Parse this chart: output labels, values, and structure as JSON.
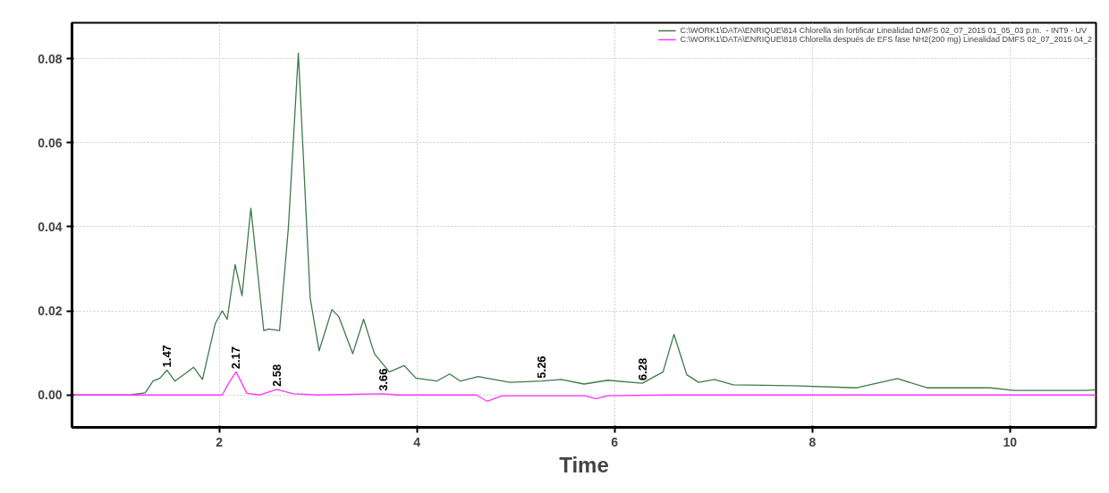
{
  "chart_data": {
    "type": "line",
    "xlabel": "Time",
    "xlim": [
      0.51,
      10.87
    ],
    "ylim": [
      -0.0077,
      0.0885
    ],
    "xticks": [
      2,
      4,
      6,
      8,
      10
    ],
    "yticks": [
      {
        "value": 0,
        "label": "0.00"
      },
      {
        "value": 0.02,
        "label": "0.02"
      },
      {
        "value": 0.04,
        "label": "0.04"
      },
      {
        "value": 0.06,
        "label": "0.06"
      },
      {
        "value": 0.08,
        "label": "0.08"
      }
    ],
    "grid": true,
    "legend": "top right",
    "marker": "none",
    "line_style": "solid",
    "series": [
      {
        "name": "C:\\WORK1\\DATA\\ENRIQUE\\814 Chlorella sin fortificar Linealidad DMFS 02_07_2015 01_05_03 p.m.  - INT9 - UV",
        "color": "#3d7a4a",
        "x": [
          0.51,
          1.1,
          1.25,
          1.33,
          1.4,
          1.47,
          1.55,
          1.65,
          1.74,
          1.83,
          1.96,
          2.03,
          2.08,
          2.16,
          2.23,
          2.32,
          2.45,
          2.5,
          2.61,
          2.7,
          2.8,
          2.92,
          3.01,
          3.14,
          3.21,
          3.35,
          3.46,
          3.57,
          3.72,
          3.87,
          3.99,
          4.2,
          4.33,
          4.44,
          4.62,
          4.94,
          5.26,
          5.46,
          5.69,
          5.93,
          6.28,
          6.49,
          6.6,
          6.73,
          6.85,
          7.01,
          7.2,
          7.8,
          8.45,
          8.86,
          9.16,
          9.8,
          10.04,
          10.75,
          10.87
        ],
        "values": [
          0,
          0,
          0.0005,
          0.0033,
          0.004,
          0.0059,
          0.0033,
          0.005,
          0.0066,
          0.0037,
          0.017,
          0.02,
          0.018,
          0.031,
          0.0236,
          0.0444,
          0.0153,
          0.0157,
          0.0153,
          0.04,
          0.0813,
          0.023,
          0.0105,
          0.0203,
          0.0186,
          0.0098,
          0.018,
          0.0098,
          0.0055,
          0.007,
          0.004,
          0.0033,
          0.005,
          0.0033,
          0.0044,
          0.003,
          0.0033,
          0.0037,
          0.0026,
          0.0035,
          0.0028,
          0.0055,
          0.0144,
          0.0048,
          0.003,
          0.0037,
          0.0024,
          0.0022,
          0.0017,
          0.0039,
          0.0017,
          0.0017,
          0.0011,
          0.0011,
          0.0012
        ]
      },
      {
        "name": "C:\\WORK1\\DATA\\ENRIQUE\\818 Chlorella después de EFS fase NH2(200 mg) Linealidad DMFS 02_07_2015 04_2",
        "color": "#ff33ff",
        "x": [
          0.51,
          2.03,
          2.1,
          2.17,
          2.28,
          2.41,
          2.58,
          2.75,
          3.0,
          3.66,
          3.8,
          4.6,
          4.71,
          4.86,
          5.7,
          5.81,
          5.93,
          6.5,
          10.87
        ],
        "values": [
          0,
          0,
          0.003,
          0.0055,
          0.0004,
          0,
          0.0013,
          0.0003,
          0,
          0.0003,
          0,
          0,
          -0.0015,
          -0.0002,
          -0.0002,
          -0.0009,
          -0.0002,
          0,
          0
        ]
      }
    ],
    "annotations": [
      {
        "text": "1.47",
        "x": 1.47,
        "y": 0.0059
      },
      {
        "text": "2.17",
        "x": 2.17,
        "y": 0.0055
      },
      {
        "text": "2.58",
        "x": 2.58,
        "y": 0.0013
      },
      {
        "text": "3.66",
        "x": 3.66,
        "y": 0.0003
      },
      {
        "text": "5.26",
        "x": 5.26,
        "y": 0.0033
      },
      {
        "text": "6.28",
        "x": 6.28,
        "y": 0.0028
      }
    ]
  }
}
